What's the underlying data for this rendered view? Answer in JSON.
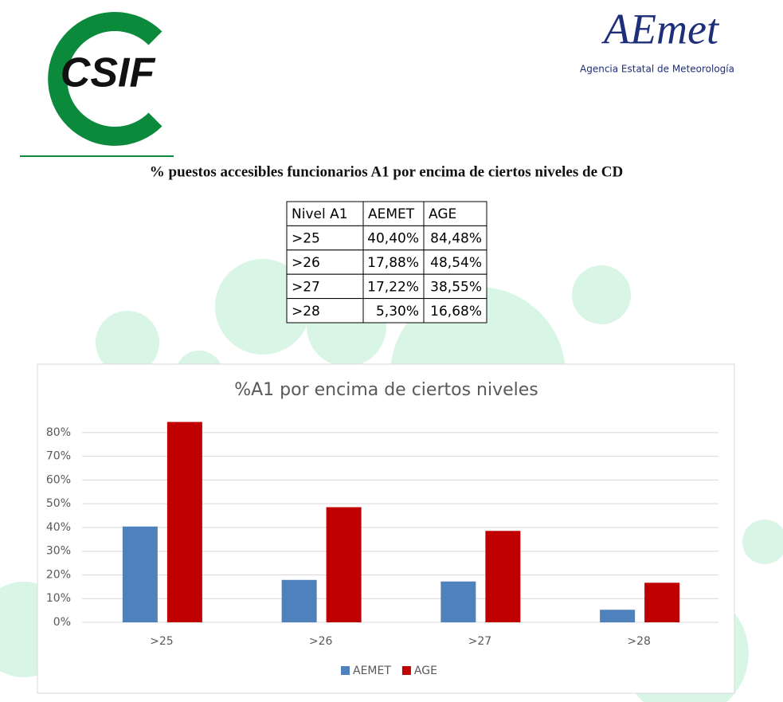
{
  "header": {
    "left_logo": "CSIF",
    "right_logo": "AEmet",
    "right_logo_subtitle": "Agencia Estatal de Meteorología"
  },
  "title": "% puestos accesibles funcionarios A1 por encima de ciertos niveles de CD",
  "table": {
    "header": [
      "Nivel A1",
      "AEMET",
      "AGE"
    ],
    "rows": [
      [
        ">25",
        "40,40%",
        "84,48%"
      ],
      [
        ">26",
        "17,88%",
        "48,54%"
      ],
      [
        ">27",
        "17,22%",
        "38,55%"
      ],
      [
        ">28",
        "5,30%",
        "16,68%"
      ]
    ]
  },
  "chart_data": {
    "type": "bar",
    "title": "%A1 por encima de ciertos niveles",
    "categories": [
      ">25",
      ">26",
      ">27",
      ">28"
    ],
    "series": [
      {
        "name": "AEMET",
        "color": "#4f81bd",
        "values": [
          40.4,
          17.88,
          17.22,
          5.3
        ]
      },
      {
        "name": "AGE",
        "color": "#c00000",
        "values": [
          84.48,
          48.54,
          38.55,
          16.68
        ]
      }
    ],
    "ylim": [
      0,
      85
    ],
    "yticks": [
      {
        "value": 0,
        "label": "0%"
      },
      {
        "value": 10,
        "label": "10%"
      },
      {
        "value": 20,
        "label": "20%"
      },
      {
        "value": 30,
        "label": "30%"
      },
      {
        "value": 40,
        "label": "40%"
      },
      {
        "value": 50,
        "label": "50%"
      },
      {
        "value": 60,
        "label": "60%"
      },
      {
        "value": 70,
        "label": "70%"
      },
      {
        "value": 80,
        "label": "80%"
      }
    ],
    "grid": true,
    "legend": "bottom"
  }
}
